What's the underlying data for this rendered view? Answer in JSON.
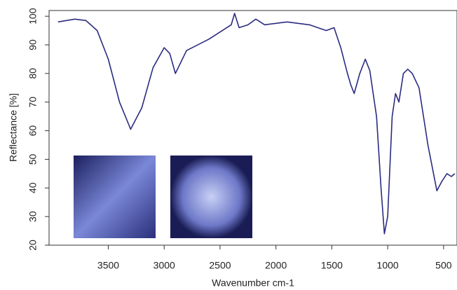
{
  "chart_data": {
    "type": "line",
    "x_label": "Wavenumber cm-1",
    "y_label": "Reflectance [%]",
    "x": [
      3950,
      3800,
      3700,
      3600,
      3500,
      3400,
      3300,
      3200,
      3100,
      3000,
      2950,
      2900,
      2850,
      2800,
      2600,
      2400,
      2370,
      2330,
      2250,
      2180,
      2100,
      1900,
      1700,
      1550,
      1480,
      1420,
      1380,
      1360,
      1330,
      1300,
      1250,
      1200,
      1160,
      1100,
      1060,
      1030,
      1000,
      960,
      930,
      900,
      860,
      820,
      780,
      720,
      680,
      640,
      600,
      560,
      520,
      470,
      430,
      400
    ],
    "values": [
      98,
      99,
      98.5,
      95,
      85,
      70,
      60.5,
      68,
      82,
      89,
      87,
      80,
      84,
      88,
      92,
      97,
      101,
      96,
      97,
      99,
      97,
      98,
      97,
      95,
      96,
      89,
      83,
      80,
      76,
      73,
      80,
      85,
      81,
      65,
      40,
      24,
      30,
      65,
      73,
      70,
      80,
      81.5,
      80,
      75,
      65,
      55,
      47,
      39,
      42,
      45,
      44,
      45
    ],
    "color": "#2b2b80",
    "xlim": [
      4030,
      380
    ],
    "xticks": [
      3500,
      3000,
      2500,
      2000,
      1500,
      1000,
      500
    ],
    "ylim": [
      20,
      102
    ],
    "yticks": [
      20,
      30,
      40,
      50,
      60,
      70,
      80,
      90,
      100
    ]
  }
}
